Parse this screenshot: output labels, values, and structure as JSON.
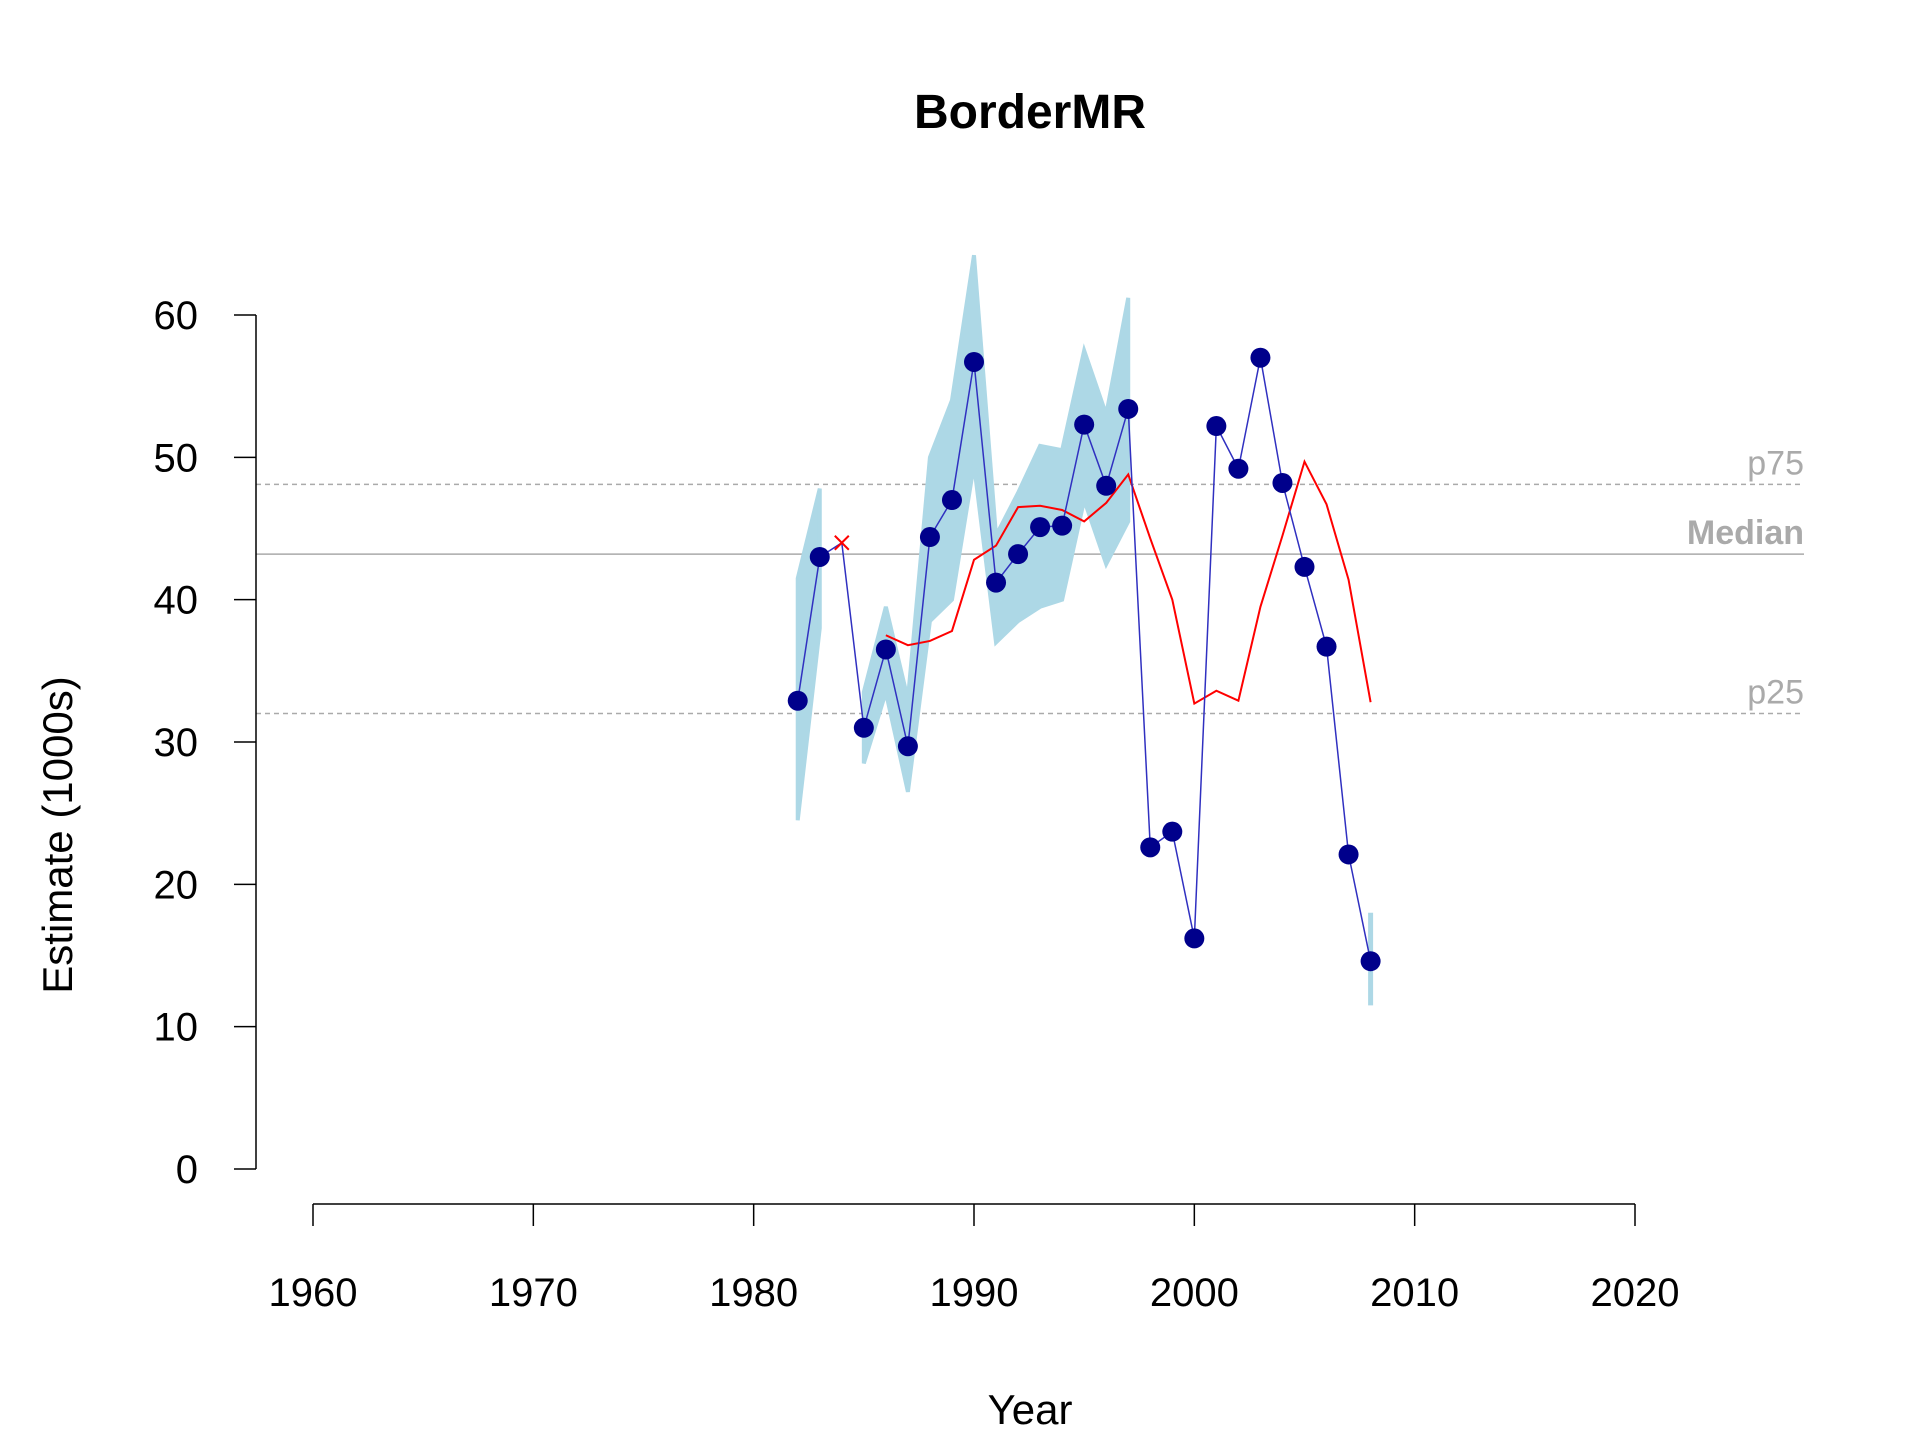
{
  "chart_data": {
    "type": "line",
    "title": "BorderMR",
    "xlabel": "Year",
    "ylabel": "Estimate (1000s)",
    "xlim": [
      1960,
      2020
    ],
    "ylim": [
      0,
      60
    ],
    "x_ticks": [
      "1960",
      "1970",
      "1980",
      "1990",
      "2000",
      "2010",
      "2020"
    ],
    "y_ticks": [
      "0",
      "10",
      "20",
      "30",
      "40",
      "50",
      "60"
    ],
    "grid": false,
    "reference_lines": [
      {
        "label": "p75",
        "value": 48.1,
        "style": "dashed",
        "bold": false
      },
      {
        "label": "Median",
        "value": 43.2,
        "style": "solid",
        "bold": true
      },
      {
        "label": "p25",
        "value": 32.0,
        "style": "dashed",
        "bold": false
      }
    ],
    "colors": {
      "estimate": "#00008b",
      "estimate_line": "#3030c0",
      "confidence": "#add8e6",
      "rolling_mean": "#ff0000",
      "reference": "#aaaaaa"
    },
    "series": [
      {
        "kind": "estimate",
        "x": [
          1982,
          1983,
          1984,
          1985,
          1986,
          1987,
          1988,
          1989,
          1990,
          1991,
          1992,
          1993,
          1994,
          1995,
          1996,
          1997,
          1998,
          1999,
          2000,
          2001,
          2002,
          2003,
          2004,
          2005,
          2006,
          2007,
          2008
        ],
        "y": [
          32.9,
          43.0,
          null,
          31.0,
          36.5,
          29.7,
          44.4,
          47.0,
          56.7,
          41.2,
          43.2,
          45.1,
          45.2,
          52.3,
          48.0,
          53.4,
          22.6,
          23.7,
          16.2,
          52.2,
          49.2,
          57.0,
          48.2,
          42.3,
          36.7,
          22.1,
          14.6
        ]
      },
      {
        "kind": "confidence_band",
        "x": [
          1982,
          1983,
          1985,
          1986,
          1987,
          1988,
          1989,
          1990,
          1991,
          1992,
          1993,
          1994,
          1995,
          1996,
          1997,
          2008
        ],
        "lower": [
          24.5,
          38.0,
          28.5,
          33.5,
          26.5,
          38.5,
          40.0,
          49.5,
          37.0,
          38.5,
          39.5,
          40.0,
          47.0,
          42.5,
          45.5,
          11.5
        ],
        "upper": [
          41.5,
          47.8,
          33.5,
          39.5,
          33.0,
          50.0,
          54.0,
          64.2,
          44.5,
          47.5,
          50.8,
          50.5,
          57.5,
          53.0,
          61.2,
          18.0
        ]
      },
      {
        "kind": "missing_marker",
        "x": [
          1984
        ],
        "y": [
          44.0
        ]
      },
      {
        "kind": "rolling_mean",
        "x": [
          1986,
          1987,
          1988,
          1989,
          1990,
          1991,
          1992,
          1993,
          1994,
          1995,
          1996,
          1997,
          1998,
          1999,
          2000,
          2001,
          2002,
          2003,
          2004,
          2005,
          2006,
          2007,
          2008
        ],
        "y": [
          37.5,
          36.8,
          37.1,
          37.8,
          42.8,
          43.8,
          46.5,
          46.6,
          46.3,
          45.5,
          46.8,
          48.8,
          44.3,
          40.0,
          32.7,
          33.6,
          32.9,
          39.5,
          44.5,
          49.7,
          46.7,
          41.4,
          32.8
        ]
      }
    ]
  }
}
